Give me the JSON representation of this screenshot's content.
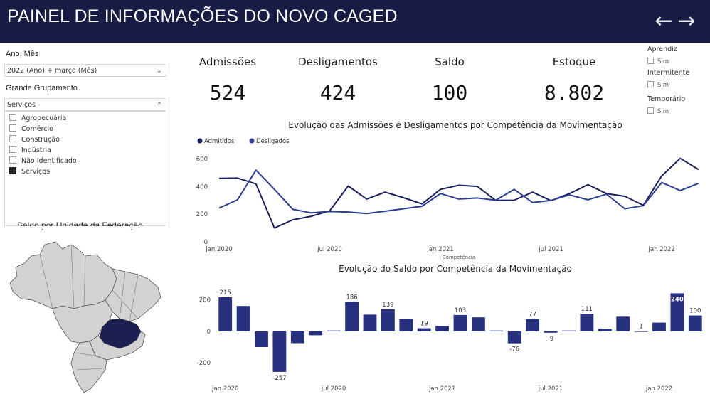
{
  "header": {
    "title": "PAINEL DE INFORMAÇÕES DO NOVO CAGED",
    "back_icon": "←",
    "forward_icon": "→"
  },
  "filters": {
    "period_label": "Ano, Mês",
    "period_value": "2022 (Ano) + março (Mês)",
    "group_label": "Grande Grupamento",
    "group_value": "Serviços",
    "options": [
      {
        "label": "Agropecuária",
        "checked": false
      },
      {
        "label": "Comércio",
        "checked": false
      },
      {
        "label": "Construção",
        "checked": false
      },
      {
        "label": "Indústria",
        "checked": false
      },
      {
        "label": "Não Identificado",
        "checked": false
      },
      {
        "label": "Serviços",
        "checked": true
      }
    ]
  },
  "map": {
    "title": "Saldo por Unidade da Federação"
  },
  "kpis": {
    "admissoes": {
      "label": "Admissões",
      "value": "524"
    },
    "desligamentos": {
      "label": "Desligamentos",
      "value": "424"
    },
    "saldo": {
      "label": "Saldo",
      "value": "100"
    },
    "estoque": {
      "label": "Estoque",
      "value": "8.802"
    }
  },
  "flags": [
    {
      "title": "Aprendiz",
      "option": "Sim"
    },
    {
      "title": "Intermitente",
      "option": "Sim"
    },
    {
      "title": "Temporário",
      "option": "Sim"
    }
  ],
  "chart_data": [
    {
      "type": "line",
      "title": "Evolução das Admissões e Desligamentos por Competência da Movimentação",
      "xlabel": "Competência",
      "ylabel": "",
      "ylim": [
        0,
        650
      ],
      "yticks": [
        "0",
        "200",
        "400",
        "600"
      ],
      "xticks": [
        "jan 2020",
        "jul 2020",
        "jan 2021",
        "jul 2021",
        "jan 2022"
      ],
      "legend": "top-left",
      "series": [
        {
          "name": "Admitidos",
          "color": "#1b1f5e",
          "values": [
            460,
            462,
            420,
            100,
            160,
            185,
            225,
            405,
            310,
            360,
            320,
            275,
            380,
            410,
            402,
            300,
            302,
            360,
            298,
            350,
            415,
            350,
            330,
            265,
            478,
            605,
            524
          ]
        },
        {
          "name": "Desligados",
          "color": "#2c3e8f",
          "values": [
            245,
            305,
            520,
            380,
            235,
            210,
            220,
            216,
            205,
            222,
            240,
            258,
            350,
            310,
            318,
            302,
            380,
            285,
            300,
            340,
            305,
            345,
            240,
            262,
            430,
            372,
            424
          ]
        }
      ]
    },
    {
      "type": "bar",
      "title": "Evolução do Saldo por Competência da Movimentação",
      "ylim": [
        -280,
        260
      ],
      "yticks": [
        "-200",
        "0",
        "200"
      ],
      "xticks": [
        "jan 2020",
        "jul 2020",
        "jan 2021",
        "jul 2021",
        "jan 2022"
      ],
      "color": "#283080",
      "values": [
        215,
        160,
        -100,
        -257,
        -75,
        -25,
        5,
        186,
        105,
        139,
        78,
        19,
        33,
        103,
        88,
        5,
        -76,
        77,
        -9,
        5,
        111,
        16,
        92,
        1,
        55,
        240,
        100
      ],
      "labels": [
        "215",
        "",
        "",
        "-257",
        "",
        "",
        "",
        "186",
        "",
        "139",
        "",
        "19",
        "",
        "103",
        "",
        "",
        "-76",
        "77",
        "-9",
        "",
        "111",
        "",
        "",
        "1",
        "",
        "240",
        "100"
      ]
    }
  ]
}
